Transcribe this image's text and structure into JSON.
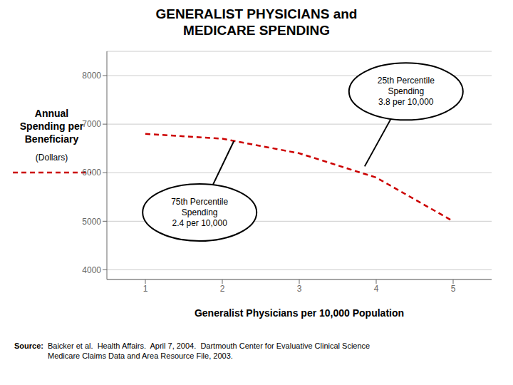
{
  "chart_data": {
    "type": "line",
    "title": "GENERALIST PHYSICIANS and\nMEDICARE SPENDING",
    "xlabel": "Generalist Physicians per 10,000 Population",
    "ylabel": "Annual\nSpending per\nBeneficiary",
    "ylabel_units": "(Dollars)",
    "x": [
      1,
      2,
      3,
      4,
      5
    ],
    "values": [
      6800,
      6700,
      6400,
      5900,
      5000
    ],
    "color": "#cc0000",
    "line_style": "dashed",
    "xlim": [
      0.5,
      5.5
    ],
    "ylim": [
      3800,
      8500
    ],
    "xticks": [
      1,
      2,
      3,
      4,
      5
    ],
    "yticks": [
      4000,
      5000,
      6000,
      7000,
      8000
    ],
    "grid": true,
    "annotations": [
      {
        "text": "25th Percentile\nSpending\n3.8 per 10,000",
        "x": 3.85,
        "y": 6130
      },
      {
        "text": "75th Percentile\nSpending\n2.4 per 10,000",
        "x": 2.15,
        "y": 6650
      }
    ],
    "source": {
      "label": "Source:",
      "text": "Baicker et al.  Health Affairs.  April 7, 2004.  Dartmouth Center for Evaluative Clinical Science\nMedicare Claims Data and Area Resource File, 2003."
    }
  }
}
